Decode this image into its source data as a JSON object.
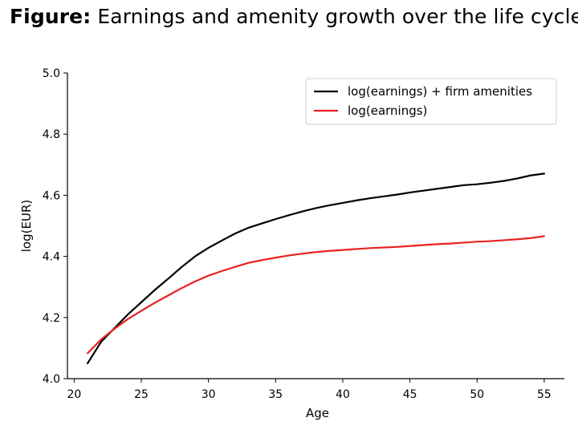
{
  "figure": {
    "label": "Figure:",
    "caption": "Earnings and amenity growth over the life cycle."
  },
  "chart_data": {
    "type": "line",
    "xlabel": "Age",
    "ylabel": "log(EUR)",
    "xlim": [
      19.5,
      56.5
    ],
    "ylim": [
      4.0,
      5.0
    ],
    "xticks": [
      20,
      25,
      30,
      35,
      40,
      45,
      50,
      55
    ],
    "yticks": [
      4.0,
      4.2,
      4.4,
      4.6,
      4.8,
      5.0
    ],
    "xtick_labels": [
      "20",
      "25",
      "30",
      "35",
      "40",
      "45",
      "50",
      "55"
    ],
    "ytick_labels": [
      "4.0",
      "4.2",
      "4.4",
      "4.6",
      "4.8",
      "5.0"
    ],
    "grid": false,
    "legend_position": "top-right",
    "x": [
      21,
      22,
      23,
      24,
      25,
      26,
      27,
      28,
      29,
      30,
      31,
      32,
      33,
      34,
      35,
      36,
      37,
      38,
      39,
      40,
      41,
      42,
      43,
      44,
      45,
      46,
      47,
      48,
      49,
      50,
      51,
      52,
      53,
      54,
      55
    ],
    "series": [
      {
        "name": "log(earnings) + firm amenities",
        "color": "#000000",
        "values": [
          4.05,
          4.12,
          4.165,
          4.21,
          4.25,
          4.29,
          4.327,
          4.365,
          4.4,
          4.428,
          4.452,
          4.475,
          4.494,
          4.508,
          4.522,
          4.535,
          4.547,
          4.558,
          4.567,
          4.575,
          4.583,
          4.59,
          4.596,
          4.602,
          4.609,
          4.615,
          4.621,
          4.627,
          4.633,
          4.636,
          4.641,
          4.647,
          4.655,
          4.665,
          4.671
        ]
      },
      {
        "name": "log(earnings)",
        "color": "#e8221f",
        "values": [
          4.083,
          4.128,
          4.163,
          4.195,
          4.222,
          4.248,
          4.272,
          4.296,
          4.318,
          4.337,
          4.352,
          4.366,
          4.379,
          4.388,
          4.396,
          4.403,
          4.409,
          4.414,
          4.418,
          4.421,
          4.424,
          4.427,
          4.429,
          4.431,
          4.434,
          4.437,
          4.44,
          4.442,
          4.445,
          4.448,
          4.45,
          4.453,
          4.456,
          4.46,
          4.466
        ]
      }
    ]
  }
}
